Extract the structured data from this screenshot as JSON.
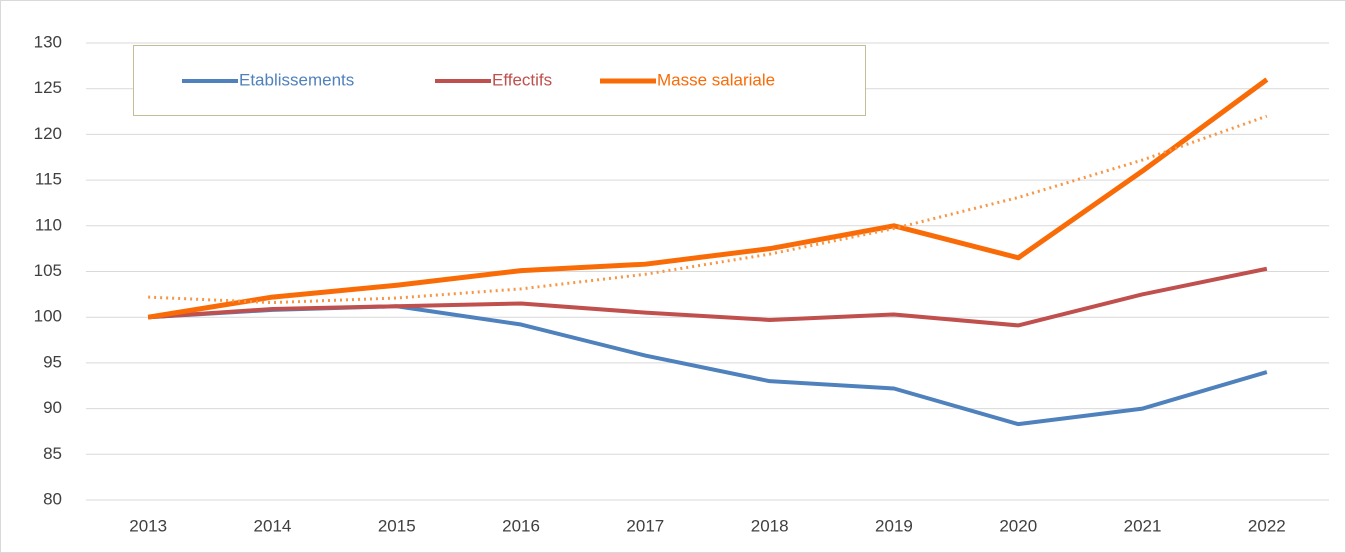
{
  "chart_data": {
    "type": "line",
    "categories": [
      "2013",
      "2014",
      "2015",
      "2016",
      "2017",
      "2018",
      "2019",
      "2020",
      "2021",
      "2022"
    ],
    "series": [
      {
        "name": "Etablissements",
        "color": "#4f81bd",
        "values": [
          100,
          100.8,
          101.2,
          99.2,
          95.8,
          93,
          92.2,
          88.3,
          90,
          94
        ]
      },
      {
        "name": "Effectifs",
        "color": "#c0504d",
        "values": [
          100,
          100.9,
          101.2,
          101.5,
          100.5,
          99.7,
          100.3,
          99.1,
          102.5,
          105.3
        ]
      },
      {
        "name": "Masse salariale",
        "color": "#f96b07",
        "values": [
          100,
          102.2,
          103.5,
          105.1,
          105.8,
          107.5,
          110,
          106.5,
          116,
          126
        ]
      }
    ],
    "trendline": {
      "color": "#f79646",
      "style": "dotted",
      "values": [
        102.2,
        101.6,
        102.1,
        103.1,
        104.7,
        106.9,
        109.7,
        113.1,
        117.2,
        122
      ]
    },
    "ylim": [
      80,
      130
    ],
    "yticks": [
      80,
      85,
      90,
      95,
      100,
      105,
      110,
      115,
      120,
      125,
      130
    ],
    "grid": true,
    "legend": "top-left"
  }
}
